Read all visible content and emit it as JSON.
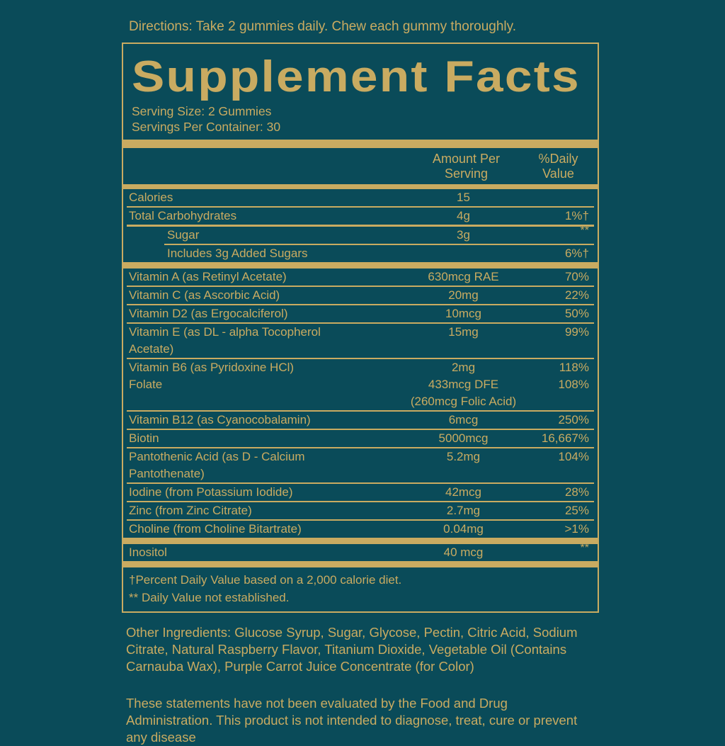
{
  "colors": {
    "background": "#0a4b59",
    "gold": "#c9ab61"
  },
  "directions": "Directions: Take 2 gummies daily. Chew each gummy thoroughly.",
  "panel": {
    "title": "Supplement Facts",
    "serving_size": "Serving Size: 2 Gummies",
    "servings_per_container": "Servings Per Container: 30",
    "footnote_dagger": "†Percent Daily Value based on a 2,000 calorie diet.",
    "footnote_asterisk": "** Daily Value not established."
  },
  "table": {
    "header": {
      "amount_line1": "Amount Per",
      "amount_line2": "Serving",
      "dv_line1": "%Daily",
      "dv_line2": "Value"
    },
    "rows": [
      {
        "name": "Calories",
        "amount": "15",
        "dv": "",
        "sep": "thin"
      },
      {
        "name": "Total Carbohydrates",
        "amount": "4g",
        "dv": "1%†",
        "sep": "heavy"
      },
      {
        "name": "Sugar",
        "amount": "3g",
        "dv": "**",
        "indent": true,
        "dv_sup": true,
        "sep": "indent"
      },
      {
        "name": "Includes 3g Added Sugars",
        "amount": "",
        "dv": "6%†",
        "indent": true,
        "sep": "bar"
      },
      {
        "name": "Vitamin A (as Retinyl Acetate)",
        "amount": "630mcg RAE",
        "dv": "70%",
        "sep": "thin"
      },
      {
        "name": "Vitamin C (as Ascorbic Acid)",
        "amount": "20mg",
        "dv": "22%",
        "sep": "thin"
      },
      {
        "name": "Vitamin D2 (as Ergocalciferol)",
        "amount": "10mcg",
        "dv": "50%",
        "sep": "thin"
      },
      {
        "name": "Vitamin E (as DL - alpha Tocopherol",
        "name2": "Acetate)",
        "amount": "15mg",
        "dv": "99%",
        "sep": "thin"
      },
      {
        "name": "Vitamin B6 (as Pyridoxine HCl)",
        "amount": "2mg",
        "dv": "118%",
        "sep": "none"
      },
      {
        "name": "Folate",
        "amount": "433mcg DFE",
        "amount2": "(260mcg Folic Acid)",
        "dv": "108%",
        "sep": "thin"
      },
      {
        "name": "Vitamin B12 (as Cyanocobalamin)",
        "amount": "6mcg",
        "dv": "250%",
        "sep": "thin"
      },
      {
        "name": "Biotin",
        "amount": "5000mcg",
        "dv": "16,667%",
        "sep": "thin"
      },
      {
        "name": "Pantothenic Acid (as D - Calcium",
        "name2": "Pantothenate)",
        "amount": "5.2mg",
        "dv": "104%",
        "sep": "thin"
      },
      {
        "name": "Iodine (from Potassium Iodide)",
        "amount": "42mcg",
        "dv": "28%",
        "sep": "thin"
      },
      {
        "name": "Zinc (from Zinc Citrate)",
        "amount": "2.7mg",
        "dv": "25%",
        "sep": "thin"
      },
      {
        "name": "Choline (from Choline Bitartrate)",
        "amount": "0.04mg",
        "dv": ">1%",
        "sep": "bar"
      },
      {
        "name": "Inositol",
        "amount": "40 mcg",
        "dv": "**",
        "dv_sup": true,
        "sep": "bar"
      }
    ]
  },
  "other_ingredients": "Other Ingredients: Glucose Syrup, Sugar, Glycose, Pectin, Citric Acid, Sodium Citrate, Natural Raspberry Flavor, Titanium Dioxide, Vegetable Oil (Contains Carnauba Wax), Purple Carrot Juice Concentrate (for Color)",
  "disclaimer": "These statements have not been evaluated by the Food and Drug Administration. This product is not intended to diagnose, treat, cure or prevent any disease"
}
